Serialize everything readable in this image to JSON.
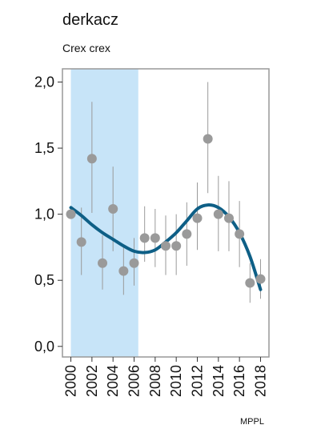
{
  "title": "derkacz",
  "subtitle": "Crex crex",
  "credit": "MPPL",
  "colors": {
    "shade": "#c7e4f8",
    "point": "#9a9a9a",
    "trend": "#0e5f86",
    "errorbar": "#9a9a9a",
    "frame": "#999999"
  },
  "chart_data": {
    "type": "scatter",
    "xlim": [
      1999.2,
      2018.8
    ],
    "ylim": [
      -0.08,
      2.1
    ],
    "y_ticks": [
      0.0,
      0.5,
      1.0,
      1.5,
      2.0
    ],
    "y_tick_labels": [
      "0,0",
      "0,5",
      "1,0",
      "1,5",
      "2,0"
    ],
    "x_ticks": [
      2000,
      2002,
      2004,
      2006,
      2008,
      2010,
      2012,
      2014,
      2016,
      2018
    ],
    "x_tick_labels": [
      "2000",
      "2002",
      "2004",
      "2006",
      "2008",
      "2010",
      "2012",
      "2014",
      "2016",
      "2018"
    ],
    "shaded_range": [
      2000,
      2006.4
    ],
    "grid": false,
    "series": [
      {
        "type": "points-with-error-bars",
        "x": [
          2000,
          2001,
          2002,
          2003,
          2004,
          2005,
          2006,
          2007,
          2008,
          2009,
          2010,
          2011,
          2012,
          2013,
          2014,
          2015,
          2016,
          2017,
          2018
        ],
        "y": [
          1.0,
          0.79,
          1.42,
          0.63,
          1.04,
          0.57,
          0.63,
          0.82,
          0.82,
          0.76,
          0.76,
          0.85,
          0.97,
          1.57,
          1.0,
          0.97,
          0.85,
          0.48,
          0.51
        ],
        "lower": [
          0.97,
          0.54,
          1.01,
          0.43,
          0.72,
          0.39,
          0.46,
          0.64,
          0.6,
          0.54,
          0.54,
          0.61,
          0.73,
          1.16,
          0.72,
          0.72,
          0.6,
          0.33,
          0.36
        ],
        "upper": [
          1.03,
          1.05,
          1.85,
          0.84,
          1.36,
          0.76,
          0.82,
          1.06,
          1.04,
          0.99,
          1.0,
          1.09,
          1.24,
          2.0,
          1.29,
          1.25,
          1.1,
          0.63,
          0.66
        ]
      },
      {
        "type": "line",
        "x": [
          2000,
          2001,
          2002,
          2003,
          2004,
          2005,
          2006,
          2007,
          2008,
          2009,
          2010,
          2011,
          2012,
          2013,
          2014,
          2015,
          2016,
          2017,
          2018
        ],
        "y": [
          1.05,
          0.99,
          0.92,
          0.86,
          0.81,
          0.76,
          0.72,
          0.71,
          0.73,
          0.79,
          0.86,
          0.95,
          1.04,
          1.07,
          1.05,
          0.98,
          0.86,
          0.68,
          0.43
        ]
      }
    ]
  }
}
